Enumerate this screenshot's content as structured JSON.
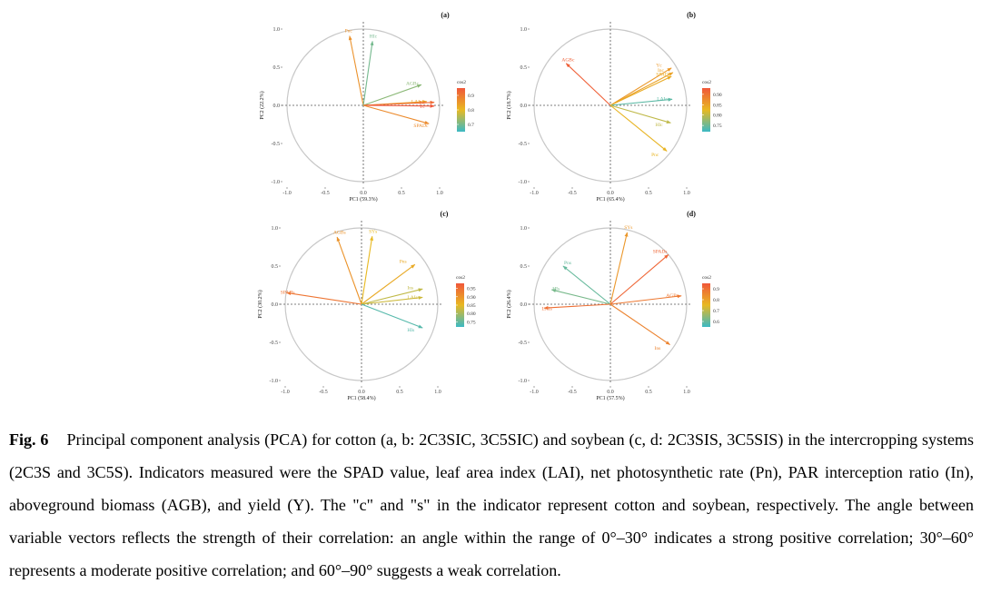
{
  "caption": {
    "label": "Fig. 6",
    "text": "Principal component analysis (PCA) for cotton (a, b: 2C3SIC, 3C5SIC) and soybean (c, d: 2C3SIS, 3C5SIS) in the intercropping systems (2C3S and 3C5S). Indicators measured were the SPAD value, leaf area index (LAI), net photosynthetic rate (Pn), PAR interception ratio (In), aboveground biomass (AGB), and yield (Y). The \"c\" and \"s\" in the indicator represent cotton and soybean, respectively. The angle between variable vectors reflects the strength of their correlation: an angle within the range of 0°–30° indicates a strong positive correlation; 30°–60° represents a moderate positive correlation; and 60°–90° suggests a weak correlation."
  },
  "colors": {
    "low": "#3bb9c4",
    "mid": "#e8b922",
    "high": "#f0573a",
    "axis": "#555555",
    "circle": "#c8c8c8"
  },
  "chart_data": [
    {
      "type": "scatter",
      "panel": "(a)",
      "xlabel": "PC1 (59.3%)",
      "ylabel": "PC2 (22.2%)",
      "xlim": [
        -1.0,
        1.0
      ],
      "ylim": [
        -1.0,
        1.0
      ],
      "xticks": [
        "-1.0",
        "-0.5",
        "0.0",
        "0.5",
        "1.0"
      ],
      "yticks": [
        "1.0",
        "0.5",
        "0.0",
        "-0.5",
        "-1.0"
      ],
      "legend_title": "cos2",
      "legend_range": [
        0.65,
        0.95
      ],
      "legend_ticks": [
        "0.9",
        "0.8",
        "0.7"
      ],
      "vectors": [
        {
          "label": "Pnc",
          "x": -0.18,
          "y": 0.91,
          "cos2": 0.86
        },
        {
          "label": "HIc",
          "x": 0.12,
          "y": 0.84,
          "cos2": 0.7
        },
        {
          "label": "AGBc",
          "x": 0.76,
          "y": 0.27,
          "cos2": 0.72
        },
        {
          "label": "LAIc",
          "x": 0.83,
          "y": 0.05,
          "cos2": 0.84
        },
        {
          "label": "Inc",
          "x": 0.93,
          "y": 0.04,
          "cos2": 0.92
        },
        {
          "label": "Yc",
          "x": 0.93,
          "y": -0.01,
          "cos2": 0.95
        },
        {
          "label": "SPADc",
          "x": 0.86,
          "y": -0.24,
          "cos2": 0.87
        }
      ]
    },
    {
      "type": "scatter",
      "panel": "(b)",
      "xlabel": "PC1 (65.4%)",
      "ylabel": "PC2 (18.7%)",
      "xlim": [
        -1.0,
        1.0
      ],
      "ylim": [
        -1.0,
        1.0
      ],
      "xticks": [
        "-1.0",
        "-0.5",
        "0.0",
        "0.5",
        "1.0"
      ],
      "yticks": [
        "1.0",
        "0.5",
        "0.0",
        "-0.5",
        "-1.0"
      ],
      "legend_title": "cos2",
      "legend_range": [
        0.72,
        0.93
      ],
      "legend_ticks": [
        "0.90",
        "0.85",
        "0.80",
        "0.75"
      ],
      "vectors": [
        {
          "label": "AGBc",
          "x": -0.58,
          "y": 0.55,
          "cos2": 0.92
        },
        {
          "label": "Yc",
          "x": 0.8,
          "y": 0.49,
          "cos2": 0.86
        },
        {
          "label": "Inc",
          "x": 0.82,
          "y": 0.43,
          "cos2": 0.85
        },
        {
          "label": "SPADc",
          "x": 0.8,
          "y": 0.38,
          "cos2": 0.84
        },
        {
          "label": "LAIc",
          "x": 0.81,
          "y": 0.08,
          "cos2": 0.74
        },
        {
          "label": "HIc",
          "x": 0.79,
          "y": -0.23,
          "cos2": 0.8
        },
        {
          "label": "Pnc",
          "x": 0.74,
          "y": -0.6,
          "cos2": 0.83
        }
      ]
    },
    {
      "type": "scatter",
      "panel": "(c)",
      "xlabel": "PC1 (58.4%)",
      "ylabel": "PC2 (30.2%)",
      "xlim": [
        -1.0,
        1.0
      ],
      "ylim": [
        -1.0,
        1.0
      ],
      "xticks": [
        "-1.0",
        "-0.5",
        "0.0",
        "0.5",
        "1.0"
      ],
      "yticks": [
        "1.0",
        "0.5",
        "0.0",
        "-0.5",
        "-1.0"
      ],
      "legend_title": "cos2",
      "legend_range": [
        0.72,
        0.98
      ],
      "legend_ticks": [
        "0.95",
        "0.90",
        "0.85",
        "0.80",
        "0.75"
      ],
      "vectors": [
        {
          "label": "AGBs",
          "x": -0.32,
          "y": 0.88,
          "cos2": 0.9
        },
        {
          "label": "SYs",
          "x": 0.14,
          "y": 0.89,
          "cos2": 0.85
        },
        {
          "label": "Pns",
          "x": 0.7,
          "y": 0.52,
          "cos2": 0.87
        },
        {
          "label": "SPADs",
          "x": -0.98,
          "y": 0.15,
          "cos2": 0.94
        },
        {
          "label": "Ins",
          "x": 0.8,
          "y": 0.2,
          "cos2": 0.82
        },
        {
          "label": "LAIs",
          "x": 0.8,
          "y": 0.09,
          "cos2": 0.83
        },
        {
          "label": "HIs",
          "x": 0.8,
          "y": -0.31,
          "cos2": 0.74
        }
      ]
    },
    {
      "type": "scatter",
      "panel": "(d)",
      "xlabel": "PC1 (57.5%)",
      "ylabel": "PC2 (26.4%)",
      "xlim": [
        -1.0,
        1.0
      ],
      "ylim": [
        -1.0,
        1.0
      ],
      "xticks": [
        "-1.0",
        "-0.5",
        "0.0",
        "0.5",
        "1.0"
      ],
      "yticks": [
        "1.0",
        "0.5",
        "0.0",
        "-0.5",
        "-1.0"
      ],
      "legend_title": "cos2",
      "legend_range": [
        0.55,
        0.95
      ],
      "legend_ticks": [
        "0.9",
        "0.8",
        "0.7",
        "0.6"
      ],
      "vectors": [
        {
          "label": "SYs",
          "x": 0.22,
          "y": 0.94,
          "cos2": 0.82
        },
        {
          "label": "SPADs",
          "x": 0.76,
          "y": 0.65,
          "cos2": 0.92
        },
        {
          "label": "Pns",
          "x": -0.62,
          "y": 0.5,
          "cos2": 0.6
        },
        {
          "label": "HIs",
          "x": -0.77,
          "y": 0.19,
          "cos2": 0.62
        },
        {
          "label": "AGBs",
          "x": 0.93,
          "y": 0.11,
          "cos2": 0.88
        },
        {
          "label": "LAIs",
          "x": -0.87,
          "y": -0.05,
          "cos2": 0.9
        },
        {
          "label": "Ins",
          "x": 0.78,
          "y": -0.53,
          "cos2": 0.86
        }
      ]
    }
  ]
}
